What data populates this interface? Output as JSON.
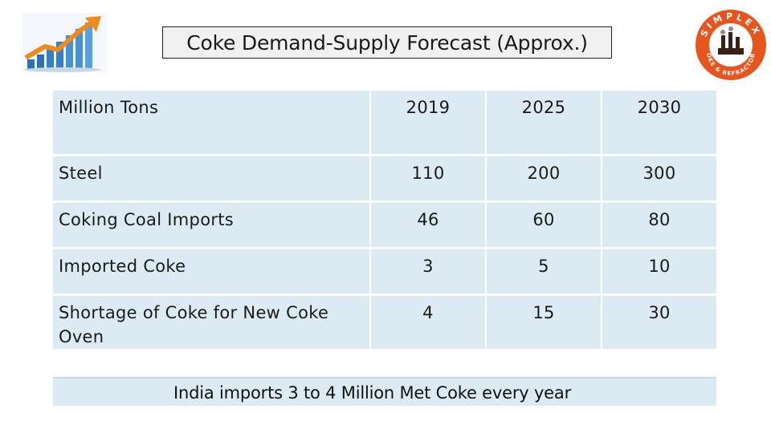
{
  "title": "Coke Demand-Supply Forecast (Approx.)",
  "brand": {
    "top_text": "SIMPLEX",
    "bottom_text": "COKE & REFRACTORY",
    "color": "#e8541e"
  },
  "table": {
    "header": {
      "label": "Million Tons",
      "years": [
        "2019",
        "2025",
        "2030"
      ]
    },
    "rows": [
      {
        "label": "Steel",
        "values": [
          "110",
          "200",
          "300"
        ]
      },
      {
        "label": "Coking Coal Imports",
        "values": [
          "46",
          "60",
          "80"
        ]
      },
      {
        "label": "Imported Coke",
        "values": [
          "3",
          "5",
          "10"
        ]
      },
      {
        "label": "Shortage of Coke for New Coke Oven",
        "values": [
          "4",
          "15",
          "30"
        ]
      }
    ]
  },
  "note": "India imports 3 to 4 Million Met Coke every year",
  "colors": {
    "cell_bg": "#dcebf3",
    "title_bg": "#f0f0f0"
  }
}
